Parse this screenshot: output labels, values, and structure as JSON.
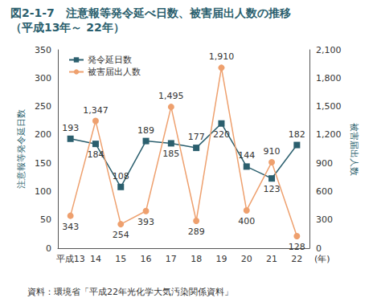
{
  "chart_data": {
    "type": "line",
    "title": "図2-1-7　注意報等発令延べ日数、被害届出人数の推移",
    "subtitle": "（平成13年～ 22年）",
    "source": "資料：環境省「平成22年光化学大気汚染関係資料」",
    "x_label": "(年)",
    "y_label": "注意報等発令延日数",
    "y2_label": "被害届出人数",
    "categories": [
      "平成13",
      "14",
      "15",
      "16",
      "17",
      "18",
      "19",
      "20",
      "21",
      "22"
    ],
    "series": [
      {
        "name": "発令延日数",
        "color": "#2b5f6e",
        "marker": "square",
        "values": [
          193,
          184,
          108,
          189,
          185,
          177,
          220,
          144,
          123,
          182
        ]
      },
      {
        "name": "被害届出人数",
        "color": "#eea06e",
        "marker": "circle",
        "axis": "y2",
        "values": [
          343,
          1347,
          254,
          393,
          1495,
          289,
          1910,
          400,
          910,
          128
        ],
        "value_labels": [
          "343",
          "1,347",
          "254",
          "393",
          "1,495",
          "289",
          "1,910",
          "400",
          "910",
          "128"
        ]
      }
    ],
    "ylim": [
      0,
      350
    ],
    "yticks": [
      0,
      50,
      100,
      150,
      200,
      250,
      300,
      350
    ],
    "y2lim": [
      0,
      2100
    ],
    "y2ticks": [
      0,
      300,
      600,
      900,
      {
        "value": 1200,
        "label": "1,200"
      },
      {
        "value": 1500,
        "label": "1,500"
      },
      {
        "value": 1800,
        "label": "1,800"
      },
      {
        "value": 2100,
        "label": "2,100"
      }
    ],
    "grid": false,
    "legend": "top-left",
    "data_labels": true
  }
}
